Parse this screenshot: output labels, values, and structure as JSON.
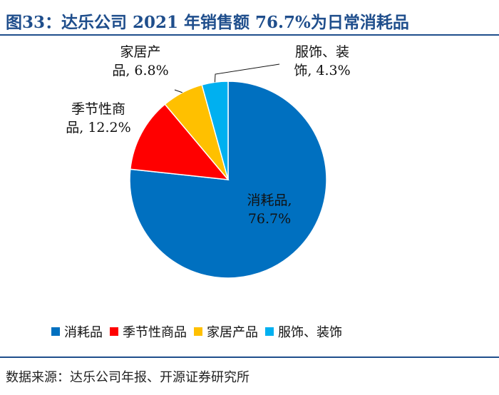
{
  "figure": {
    "title": "图33：达乐公司 2021 年销售额 76.7%为日常消耗品",
    "source": "数据来源：达乐公司年报、开源证券研究所"
  },
  "chart_data": {
    "type": "pie",
    "start_angle_deg": 0,
    "direction": "counterclockwise-after-first",
    "slices": [
      {
        "name": "消耗品",
        "value": 76.7,
        "label_lines": [
          "消耗品,",
          "76.7%"
        ],
        "color": "#0070C0"
      },
      {
        "name": "季节性商品",
        "value": 12.2,
        "label_lines": [
          "季节性商",
          "品, 12.2%"
        ],
        "color": "#FF0000"
      },
      {
        "name": "家居产品",
        "value": 6.8,
        "label_lines": [
          "家居产",
          "品, 6.8%"
        ],
        "color": "#FFC000"
      },
      {
        "name": "服饰、装饰",
        "value": 4.3,
        "label_lines": [
          "服饰、装",
          "饰, 4.3%"
        ],
        "color": "#00B0F0"
      }
    ],
    "legend_placement": "bottom",
    "unit": "%"
  }
}
